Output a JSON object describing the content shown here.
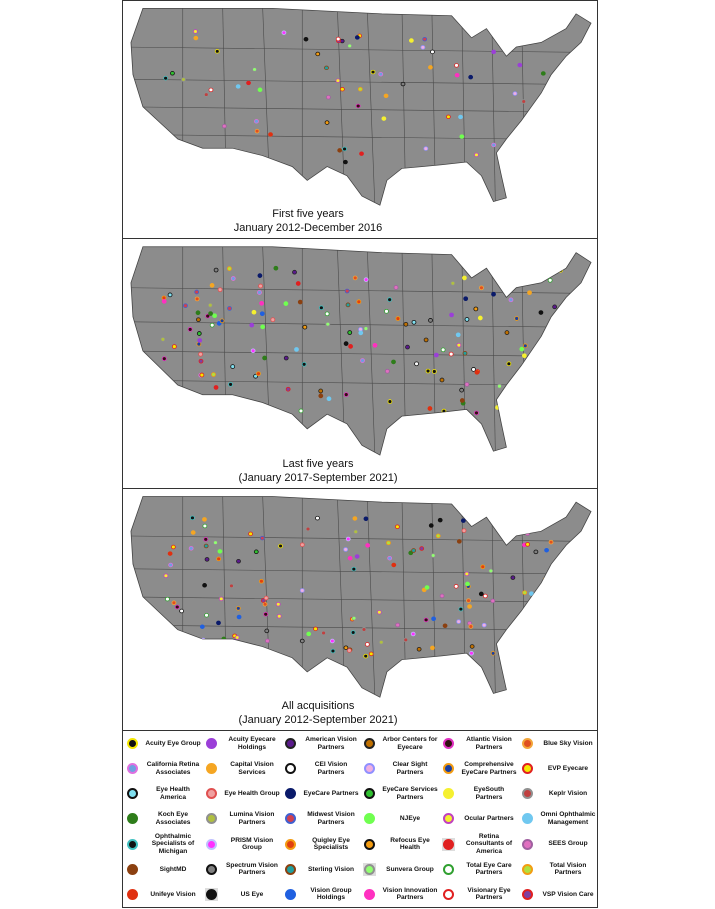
{
  "panels": [
    {
      "caption": [
        "First five years",
        "January 2012-December 2016"
      ]
    },
    {
      "caption": [
        "Last five years",
        "(January 2017-September 2021)"
      ]
    },
    {
      "caption": [
        "All acquisitions",
        "(January 2012-September 2021)"
      ]
    }
  ],
  "legend": [
    {
      "label": "Acuity Eye Group",
      "fill": "#111111",
      "ring": "#f5e800"
    },
    {
      "label": "Acuity Eyecare Holdings",
      "fill": "#9b3fd8",
      "ring": "#9b3fd8"
    },
    {
      "label": "American Vision Partners",
      "fill": "#5a1a8c",
      "ring": "#222222"
    },
    {
      "label": "Arbor Centers for Eyecare",
      "fill": "#c07000",
      "ring": "#222222"
    },
    {
      "label": "Atlantic Vision Partners",
      "fill": "#301010",
      "ring": "#e030c0"
    },
    {
      "label": "Blue Sky Vision",
      "fill": "#e05020",
      "ring": "#f2a53a"
    },
    {
      "label": "California Retina Associates",
      "fill": "#6fa0e0",
      "ring": "#e070e0"
    },
    {
      "label": "Capital Vision Services",
      "fill": "#f5a623",
      "ring": "#f5a623"
    },
    {
      "label": "CEI Vision Partners",
      "fill": "#ffffff",
      "ring": "#111111"
    },
    {
      "label": "Clear Sight Partners",
      "fill": "#f0b0e0",
      "ring": "#9090ff"
    },
    {
      "label": "Comprehensive EyeCare Partners",
      "fill": "#1a3fa0",
      "ring": "#f39c12"
    },
    {
      "label": "EVP Eyecare",
      "fill": "#f5e800",
      "ring": "#e02020"
    },
    {
      "label": "Eye Health America",
      "fill": "#80e0f0",
      "ring": "#111111"
    },
    {
      "label": "Eye Health Group",
      "fill": "#f0a0a0",
      "ring": "#e05050"
    },
    {
      "label": "EyeCare Partners",
      "fill": "#0a1a6a",
      "ring": "#0a1a6a"
    },
    {
      "label": "EyeCare Services Partners",
      "fill": "#30c030",
      "ring": "#111111"
    },
    {
      "label": "EyeSouth Partners",
      "fill": "#f5f030",
      "ring": "#f5f030"
    },
    {
      "label": "Keplr Vision",
      "fill": "#c04040",
      "ring": "#909090"
    },
    {
      "label": "Koch Eye Associates",
      "fill": "#2e7d1a",
      "ring": "#2e7d1a"
    },
    {
      "label": "Lumina Vision Partners",
      "fill": "#b0c040",
      "ring": "#909090"
    },
    {
      "label": "Midwest Vision Partners",
      "fill": "#d04050",
      "ring": "#4060d0"
    },
    {
      "label": "NJEye",
      "fill": "#70ff50",
      "ring": "#70ff50"
    },
    {
      "label": "Ocular Partners",
      "fill": "#f5f030",
      "ring": "#c040c0"
    },
    {
      "label": "Omni Ophthalmic Management",
      "fill": "#70c8f0",
      "ring": "#70c8f0"
    },
    {
      "label": "Ophthalmic Specialists of Michigan",
      "fill": "#111111",
      "ring": "#40c0c0"
    },
    {
      "label": "PRISM Vision Group",
      "fill": "#ff30ff",
      "ring": "#c0c0ff"
    },
    {
      "label": "Quigley Eye Specialists",
      "fill": "#e04010",
      "ring": "#f39c12"
    },
    {
      "label": "Refocus Eye Health",
      "fill": "#f39c12",
      "ring": "#111111"
    },
    {
      "label": "Retina Consultants of America",
      "fill": "#e02020",
      "ring": "#e02020",
      "box": "#dddddd"
    },
    {
      "label": "SEES Group",
      "fill": "#e070c0",
      "ring": "#a060a0"
    },
    {
      "label": "SightMD",
      "fill": "#8b4010",
      "ring": "#8b4010"
    },
    {
      "label": "Spectrum Vision Partners",
      "fill": "#808080",
      "ring": "#111111"
    },
    {
      "label": "Sterling Vision",
      "fill": "#20a0a0",
      "ring": "#8b4010"
    },
    {
      "label": "Sunvera Group",
      "fill": "#90ff70",
      "ring": "#909090",
      "box": "#dddddd"
    },
    {
      "label": "Total Eye Care Partners",
      "fill": "#ffffff",
      "ring": "#30a030"
    },
    {
      "label": "Total Vision Partners",
      "fill": "#b0e040",
      "ring": "#f39c12"
    },
    {
      "label": "Unifeye Vision",
      "fill": "#e03010",
      "ring": "#e03010"
    },
    {
      "label": "US Eye",
      "fill": "#111111",
      "ring": "#111111",
      "box": "#dddddd"
    },
    {
      "label": "Vision Group Holdings",
      "fill": "#2060e0",
      "ring": "#2060e0"
    },
    {
      "label": "Vision Innovation Partners",
      "fill": "#ff30c0",
      "ring": "#ff30c0"
    },
    {
      "label": "Visionary Eye Partners",
      "fill": "#ffffff",
      "ring": "#e02020"
    },
    {
      "label": "VSP Vision Care",
      "fill": "#8040a0",
      "ring": "#e02020"
    }
  ]
}
